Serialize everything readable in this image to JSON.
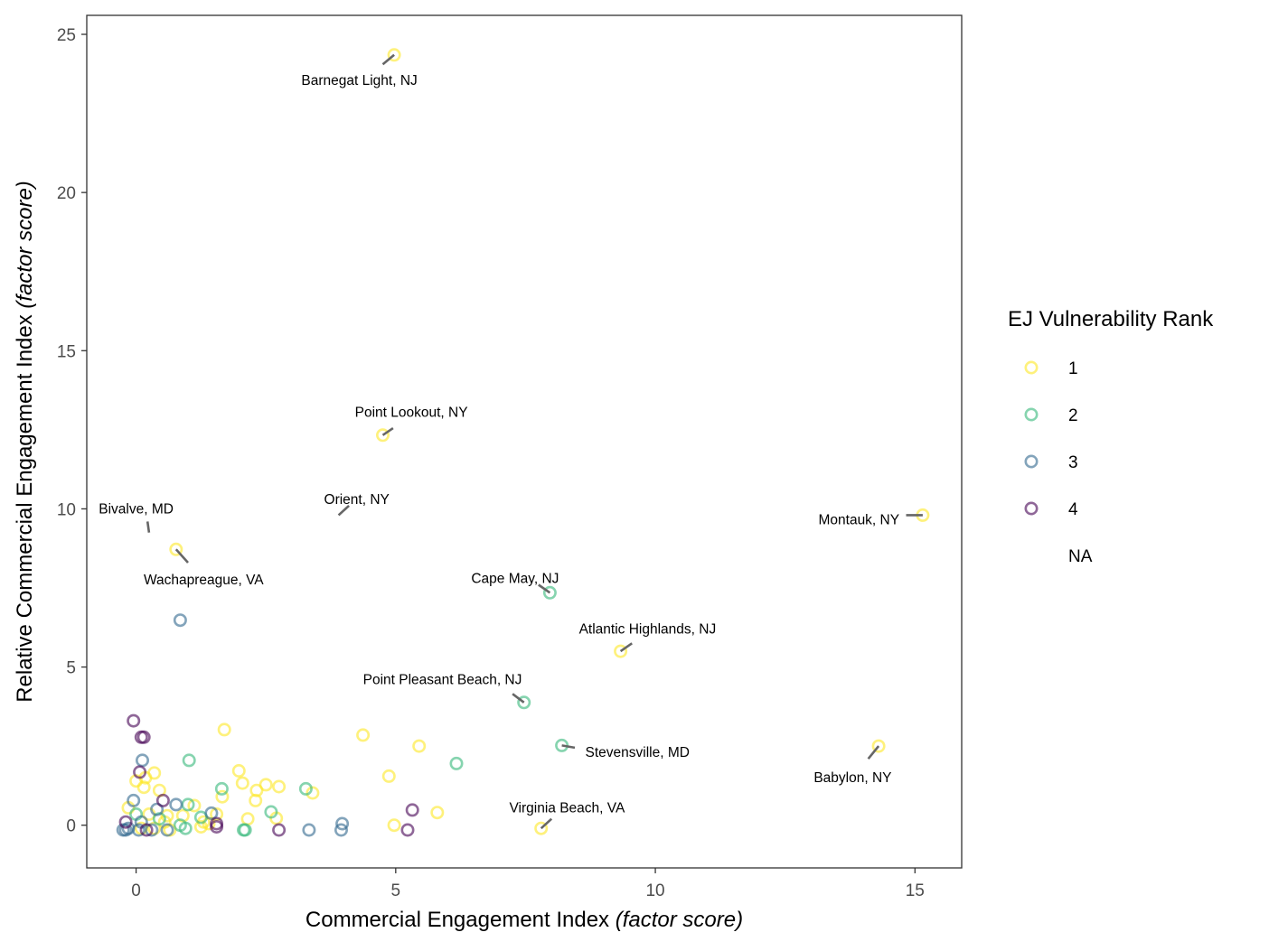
{
  "chart_data": {
    "type": "scatter",
    "xlabel": "Commercial Engagement Index",
    "xlabel_italic": "(factor score)",
    "ylabel": "Relative Commercial Engagement Index",
    "ylabel_italic": "(factor score)",
    "xlim": [
      -0.95,
      15.9
    ],
    "ylim": [
      -1.35,
      25.6
    ],
    "xticks": [
      0,
      5,
      10,
      15
    ],
    "yticks": [
      0,
      5,
      10,
      15,
      20,
      25
    ],
    "grid": false,
    "legend": {
      "title": "EJ Vulnerability Rank",
      "placement": "right",
      "entries": [
        {
          "label": "1",
          "color": "#FDE725"
        },
        {
          "label": "2",
          "color": "#35B779"
        },
        {
          "label": "3",
          "color": "#31688E"
        },
        {
          "label": "4",
          "color": "#440154"
        },
        {
          "label": "NA",
          "color": null
        }
      ]
    },
    "series": [
      {
        "rank": "1",
        "color": "#FDE725",
        "points": [
          [
            4.97,
            24.35
          ],
          [
            4.75,
            12.33
          ],
          [
            0.77,
            8.72
          ],
          [
            15.15,
            9.8
          ],
          [
            14.3,
            2.5
          ],
          [
            9.33,
            5.5
          ],
          [
            7.8,
            -0.1
          ],
          [
            4.37,
            2.85
          ],
          [
            5.45,
            2.5
          ],
          [
            4.87,
            1.55
          ],
          [
            4.97,
            0.0
          ],
          [
            5.8,
            0.4
          ],
          [
            1.7,
            3.02
          ],
          [
            1.98,
            1.72
          ],
          [
            2.05,
            1.33
          ],
          [
            2.32,
            1.1
          ],
          [
            2.5,
            1.28
          ],
          [
            2.3,
            0.78
          ],
          [
            2.75,
            1.22
          ],
          [
            3.4,
            1.02
          ],
          [
            2.15,
            0.2
          ],
          [
            2.7,
            0.22
          ],
          [
            1.66,
            0.9
          ],
          [
            1.12,
            0.62
          ],
          [
            0.18,
            1.5
          ],
          [
            0.35,
            1.65
          ],
          [
            0.0,
            1.4
          ],
          [
            0.45,
            1.1
          ],
          [
            0.15,
            1.2
          ],
          [
            -0.15,
            0.55
          ],
          [
            0.6,
            0.3
          ],
          [
            0.9,
            0.3
          ],
          [
            1.4,
            0.05
          ],
          [
            0.35,
            -0.1
          ],
          [
            0.1,
            -0.1
          ],
          [
            0.55,
            0.1
          ],
          [
            1.3,
            0.1
          ],
          [
            0.65,
            -0.15
          ],
          [
            0.25,
            0.35
          ],
          [
            1.55,
            0.35
          ],
          [
            1.25,
            -0.05
          ]
        ]
      },
      {
        "rank": "2",
        "color": "#35B779",
        "points": [
          [
            7.97,
            7.35
          ],
          [
            7.47,
            3.88
          ],
          [
            8.2,
            2.52
          ],
          [
            6.17,
            1.95
          ],
          [
            1.02,
            2.05
          ],
          [
            1.65,
            1.15
          ],
          [
            3.27,
            1.15
          ],
          [
            2.6,
            0.42
          ],
          [
            1.0,
            0.65
          ],
          [
            1.25,
            0.25
          ],
          [
            2.07,
            -0.15
          ],
          [
            2.1,
            -0.15
          ],
          [
            0.95,
            -0.1
          ],
          [
            0.45,
            0.2
          ],
          [
            0.0,
            0.35
          ],
          [
            0.85,
            0.0
          ]
        ]
      },
      {
        "rank": "3",
        "color": "#31688E",
        "points": [
          [
            0.85,
            6.48
          ],
          [
            0.12,
            2.05
          ],
          [
            3.97,
            0.05
          ],
          [
            3.95,
            -0.15
          ],
          [
            3.33,
            -0.15
          ],
          [
            1.45,
            0.38
          ],
          [
            0.77,
            0.65
          ],
          [
            -0.05,
            0.78
          ],
          [
            0.4,
            0.5
          ],
          [
            -0.2,
            -0.15
          ],
          [
            -0.25,
            -0.15
          ],
          [
            -0.15,
            -0.1
          ],
          [
            0.1,
            0.1
          ],
          [
            0.3,
            -0.15
          ],
          [
            0.6,
            -0.15
          ],
          [
            0.05,
            -0.15
          ]
        ]
      },
      {
        "rank": "4",
        "color": "#440154",
        "points": [
          [
            -0.05,
            3.3
          ],
          [
            0.1,
            2.78
          ],
          [
            0.15,
            2.78
          ],
          [
            0.07,
            1.68
          ],
          [
            0.52,
            0.78
          ],
          [
            5.32,
            0.48
          ],
          [
            5.23,
            -0.15
          ],
          [
            2.75,
            -0.15
          ],
          [
            1.55,
            0.05
          ],
          [
            1.55,
            -0.05
          ],
          [
            -0.2,
            0.1
          ],
          [
            0.2,
            -0.15
          ]
        ]
      }
    ],
    "annotations": [
      {
        "text": "Barnegat Light, NJ",
        "point": [
          4.97,
          24.35
        ],
        "label_at": [
          4.3,
          23.55
        ],
        "anchor": "middle",
        "seg": [
          4.75,
          24.05
        ]
      },
      {
        "text": "Point Lookout, NY",
        "point": [
          4.75,
          12.33
        ],
        "label_at": [
          5.3,
          13.05
        ],
        "anchor": "middle",
        "seg": [
          4.95,
          12.55
        ]
      },
      {
        "text": "Orient, NY",
        "point": [
          3.9,
          9.8
        ],
        "label_at": [
          4.25,
          10.3
        ],
        "anchor": "middle",
        "seg": [
          4.1,
          10.1
        ]
      },
      {
        "text": "Bivalve, MD",
        "point": [
          0.25,
          9.25
        ],
        "label_at": [
          0.0,
          10.0
        ],
        "anchor": "middle",
        "seg": [
          0.22,
          9.6
        ]
      },
      {
        "text": "Wachapreague, VA",
        "point": [
          0.77,
          8.72
        ],
        "label_at": [
          1.3,
          7.75
        ],
        "anchor": "middle",
        "seg": [
          1.0,
          8.3
        ]
      },
      {
        "text": "Montauk, NY",
        "point": [
          15.15,
          9.8
        ],
        "label_at": [
          14.7,
          9.65
        ],
        "anchor": "end",
        "seg": [
          14.83,
          9.8
        ]
      },
      {
        "text": "Cape May, NJ",
        "point": [
          7.97,
          7.35
        ],
        "label_at": [
          7.3,
          7.8
        ],
        "anchor": "middle",
        "seg": [
          7.75,
          7.6
        ]
      },
      {
        "text": "Atlantic Highlands, NJ",
        "point": [
          9.33,
          5.5
        ],
        "label_at": [
          9.85,
          6.2
        ],
        "anchor": "middle",
        "seg": [
          9.55,
          5.75
        ]
      },
      {
        "text": "Point Pleasant Beach, NJ",
        "point": [
          7.47,
          3.88
        ],
        "label_at": [
          5.9,
          4.6
        ],
        "anchor": "middle",
        "seg": [
          7.25,
          4.15
        ]
      },
      {
        "text": "Stevensville, MD",
        "point": [
          8.2,
          2.52
        ],
        "label_at": [
          8.65,
          2.3
        ],
        "anchor": "start",
        "seg": [
          8.45,
          2.45
        ]
      },
      {
        "text": "Babylon, NY",
        "point": [
          14.3,
          2.5
        ],
        "label_at": [
          13.8,
          1.5
        ],
        "anchor": "middle",
        "seg": [
          14.1,
          2.1
        ]
      },
      {
        "text": "Virginia Beach, VA",
        "point": [
          7.8,
          -0.1
        ],
        "label_at": [
          8.3,
          0.55
        ],
        "anchor": "middle",
        "seg": [
          8.0,
          0.2
        ]
      }
    ]
  }
}
